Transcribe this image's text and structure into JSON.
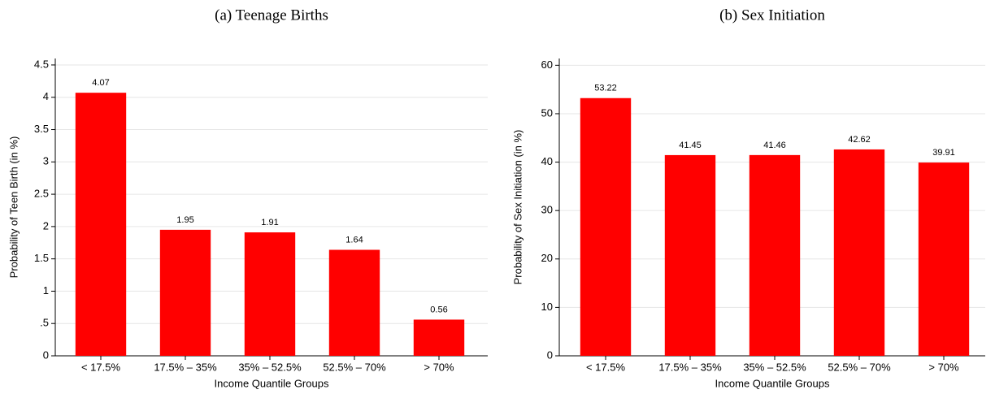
{
  "chart_data": [
    {
      "type": "bar",
      "title": "(a) Teenage Births",
      "y_label": "Probability of Teen Birth (in %)",
      "x_label": "Income Quantile Groups",
      "categories": [
        "< 17.5%",
        "17.5% – 35%",
        "35% – 52.5%",
        "52.5% – 70%",
        "> 70%"
      ],
      "values": [
        4.07,
        1.95,
        1.91,
        1.64,
        0.56
      ],
      "color": "#ff0000",
      "ylim": [
        0,
        4.6
      ],
      "yticks": [
        0,
        {
          "value": 0.5,
          "label": ".5"
        },
        1,
        1.5,
        2,
        2.5,
        3,
        3.5,
        4,
        4.5
      ],
      "grid": true
    },
    {
      "type": "bar",
      "title": "(b) Sex Initiation",
      "y_label": "Probability of Sex Initiation (in %)",
      "x_label": "Income Quantile Groups",
      "categories": [
        "< 17.5%",
        "17.5% – 35%",
        "35% – 52.5%",
        "52.5% – 70%",
        "> 70%"
      ],
      "values": [
        53.22,
        41.45,
        41.46,
        42.62,
        39.91
      ],
      "color": "#ff0000",
      "ylim": [
        0,
        61.4
      ],
      "yticks": [
        0,
        10,
        20,
        30,
        40,
        50,
        60
      ],
      "grid": true
    }
  ]
}
